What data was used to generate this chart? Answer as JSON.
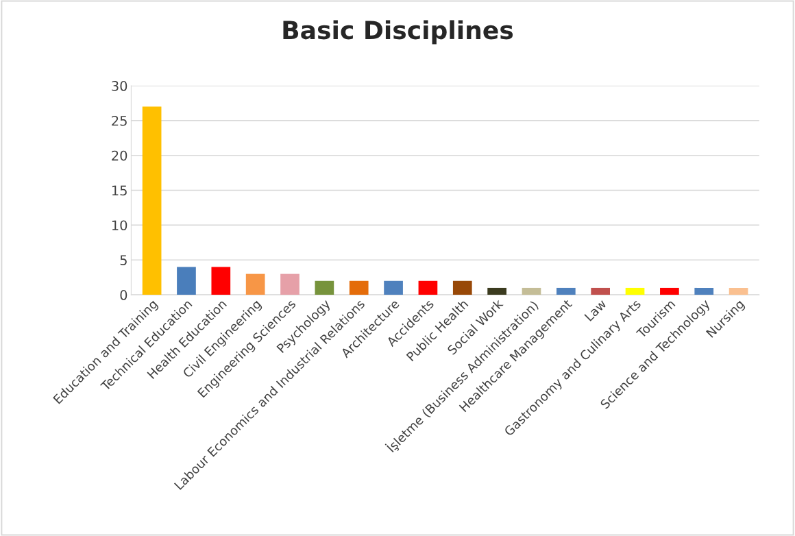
{
  "chart_data": {
    "type": "bar",
    "title": "Basic Disciplines",
    "categories": [
      "Education and Training",
      "Technical Education",
      "Health Education",
      "Civil Engineering",
      "Engineering Sciences",
      "Psychology",
      "Labour Economics and Industrial Relations",
      "Architecture",
      "Accidents",
      "Public Health",
      "Social Work",
      "İşletme (Business Administration)",
      "Healthcare Management",
      "Law",
      "Gastronomy and Culinary Arts",
      "Tourism",
      "Science and Technology",
      "Nursing"
    ],
    "values": [
      27,
      4,
      4,
      3,
      3,
      2,
      2,
      2,
      2,
      2,
      1,
      1,
      1,
      1,
      1,
      1,
      1,
      1
    ],
    "colors": [
      "#ffc000",
      "#4a7ebb",
      "#ff0000",
      "#f79646",
      "#e6a0a8",
      "#77933c",
      "#e46c0a",
      "#4f81bd",
      "#ff0000",
      "#984807",
      "#3b3b1f",
      "#c4bd97",
      "#4f81bd",
      "#c0504d",
      "#ffff00",
      "#ff0000",
      "#4f81bd",
      "#fac090"
    ],
    "ylim": [
      0,
      30
    ],
    "yticks": [
      0,
      5,
      10,
      15,
      20,
      25,
      30
    ],
    "grid": "y"
  }
}
